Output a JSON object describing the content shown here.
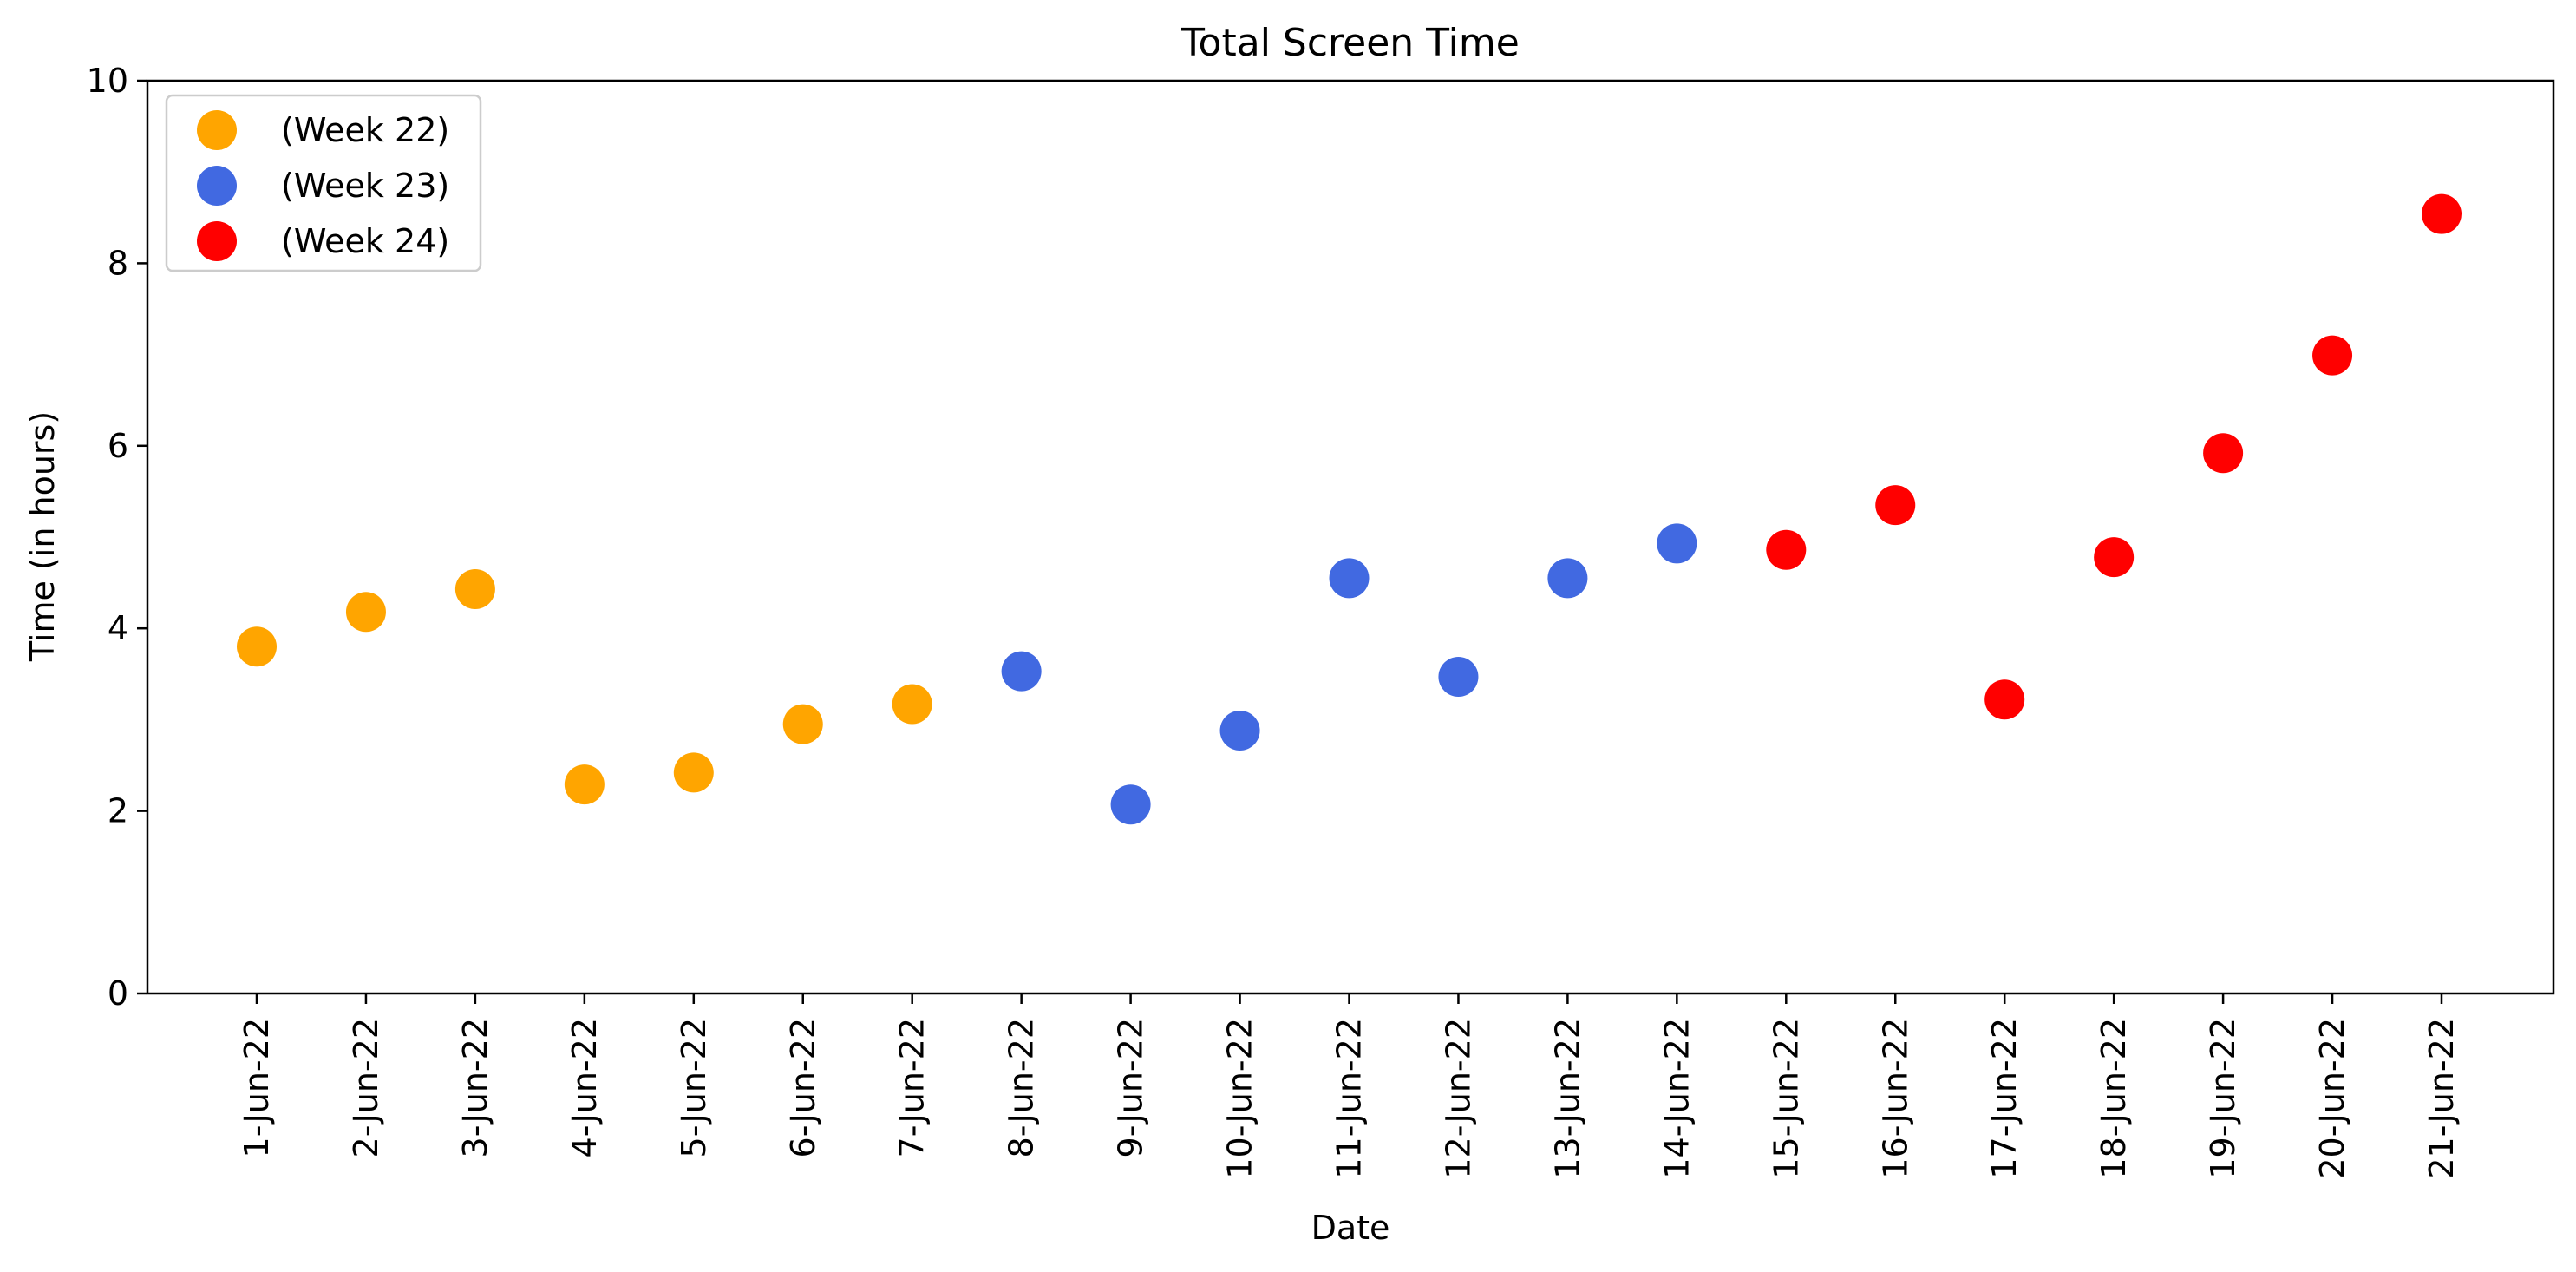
{
  "chart_data": {
    "type": "scatter",
    "title": "Total Screen Time",
    "xlabel": "Date",
    "ylabel": "Time (in hours)",
    "ylim": [
      0,
      10
    ],
    "yticks": [
      0,
      2,
      4,
      6,
      8,
      10
    ],
    "grid": false,
    "legend_position": "top-left",
    "categories": [
      "1-Jun-22",
      "2-Jun-22",
      "3-Jun-22",
      "4-Jun-22",
      "5-Jun-22",
      "6-Jun-22",
      "7-Jun-22",
      "8-Jun-22",
      "9-Jun-22",
      "10-Jun-22",
      "11-Jun-22",
      "12-Jun-22",
      "13-Jun-22",
      "14-Jun-22",
      "15-Jun-22",
      "16-Jun-22",
      "17-Jun-22",
      "18-Jun-22",
      "19-Jun-22",
      "20-Jun-22",
      "21-Jun-22"
    ],
    "series": [
      {
        "name": "(Week 22)",
        "color": "#FFA500",
        "x": [
          "1-Jun-22",
          "2-Jun-22",
          "3-Jun-22",
          "4-Jun-22",
          "5-Jun-22",
          "6-Jun-22",
          "7-Jun-22"
        ],
        "values": [
          3.8,
          4.18,
          4.43,
          2.29,
          2.42,
          2.95,
          3.17
        ]
      },
      {
        "name": "(Week 23)",
        "color": "#4169E1",
        "x": [
          "8-Jun-22",
          "9-Jun-22",
          "10-Jun-22",
          "11-Jun-22",
          "12-Jun-22",
          "13-Jun-22",
          "14-Jun-22"
        ],
        "values": [
          3.53,
          2.07,
          2.88,
          4.55,
          3.47,
          4.55,
          4.93
        ]
      },
      {
        "name": "(Week 24)",
        "color": "#FF0000",
        "x": [
          "15-Jun-22",
          "16-Jun-22",
          "17-Jun-22",
          "18-Jun-22",
          "19-Jun-22",
          "20-Jun-22",
          "21-Jun-22"
        ],
        "values": [
          4.86,
          5.35,
          3.22,
          4.78,
          5.92,
          6.99,
          8.54
        ]
      }
    ]
  }
}
